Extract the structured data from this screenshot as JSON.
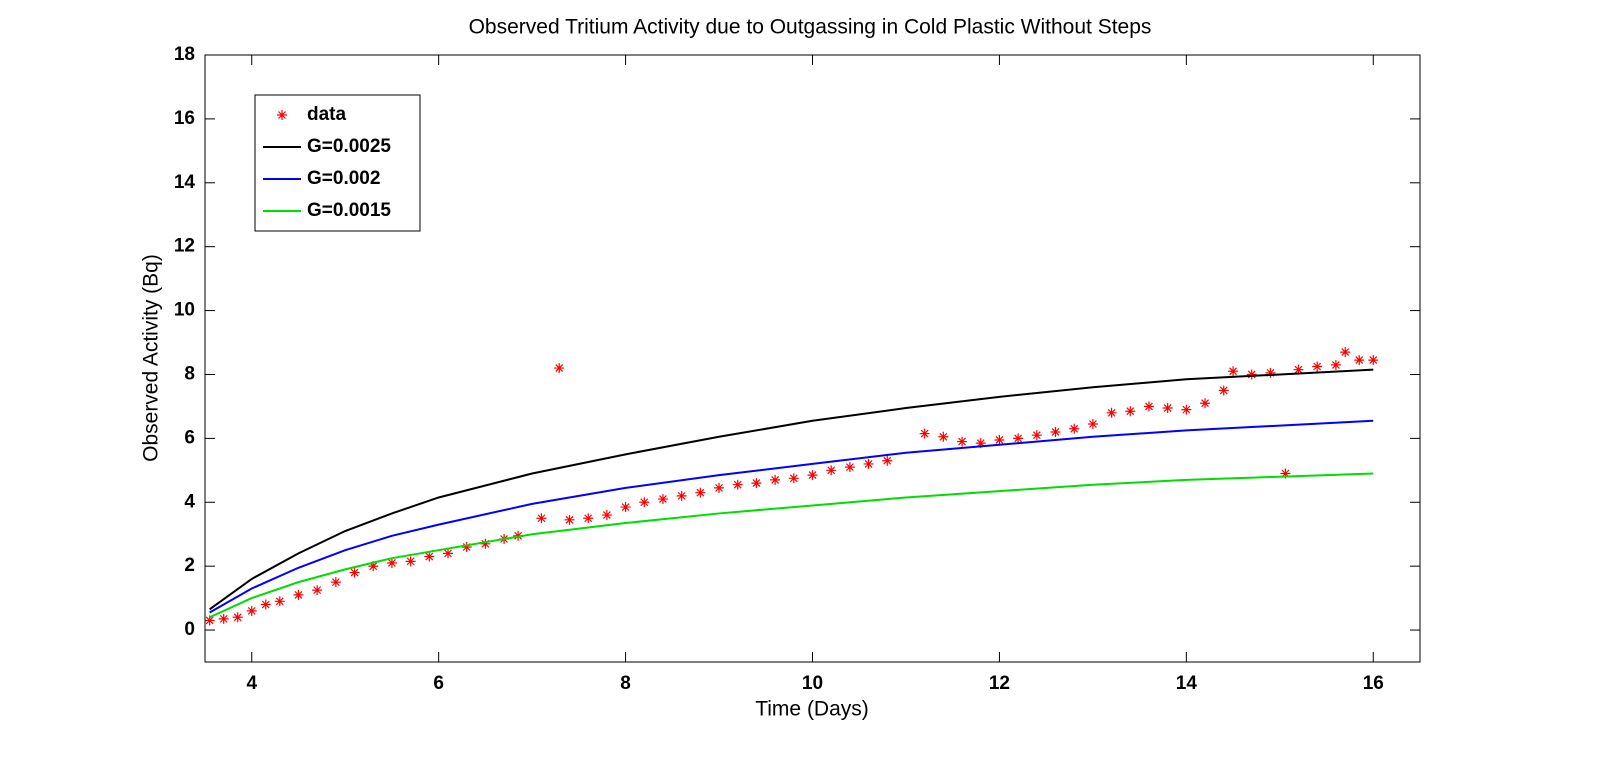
{
  "chart_data": {
    "type": "line",
    "title": "Observed Tritium Activity due to Outgassing in Cold Plastic Without Steps",
    "x_label": "Time (Days)",
    "y_label": "Observed Activity (Bq)",
    "xlim": [
      3.5,
      16.5
    ],
    "ylim": [
      -1,
      18
    ],
    "xticks": [
      4,
      6,
      8,
      10,
      12,
      14,
      16
    ],
    "yticks": [
      0,
      2,
      4,
      6,
      8,
      10,
      12,
      14,
      16,
      18
    ],
    "legend": "upper left",
    "series": [
      {
        "name": "data",
        "color": "#ff0000",
        "marker": "*",
        "x": [
          3.55,
          3.7,
          3.85,
          4.0,
          4.15,
          4.3,
          4.5,
          4.7,
          4.9,
          5.1,
          5.3,
          5.5,
          5.7,
          5.9,
          6.1,
          6.3,
          6.5,
          6.7,
          6.85,
          7.1,
          7.29,
          7.4,
          7.6,
          7.8,
          8.0,
          8.2,
          8.4,
          8.6,
          8.8,
          9.0,
          9.2,
          9.4,
          9.6,
          9.8,
          10.0,
          10.2,
          10.4,
          10.6,
          10.8,
          11.2,
          11.4,
          11.6,
          11.8,
          12.0,
          12.2,
          12.4,
          12.6,
          12.8,
          13.0,
          13.2,
          13.4,
          13.6,
          13.8,
          14.0,
          14.2,
          14.4,
          14.5,
          14.7,
          14.9,
          15.06,
          15.2,
          15.4,
          15.6,
          15.7,
          15.85,
          16.0
        ],
        "values": [
          0.3,
          0.35,
          0.4,
          0.6,
          0.8,
          0.9,
          1.1,
          1.25,
          1.5,
          1.8,
          2.0,
          2.1,
          2.15,
          2.3,
          2.4,
          2.6,
          2.7,
          2.85,
          2.95,
          3.5,
          8.2,
          3.45,
          3.5,
          3.6,
          3.85,
          4.0,
          4.1,
          4.2,
          4.3,
          4.45,
          4.55,
          4.6,
          4.7,
          4.75,
          4.85,
          5.0,
          5.1,
          5.2,
          5.3,
          6.15,
          6.05,
          5.9,
          5.85,
          5.95,
          6.0,
          6.1,
          6.2,
          6.3,
          6.45,
          6.8,
          6.85,
          7.0,
          6.95,
          6.9,
          7.1,
          7.5,
          8.1,
          8.0,
          8.05,
          4.9,
          8.15,
          8.25,
          8.3,
          8.7,
          8.45,
          8.45
        ]
      },
      {
        "name": "G=0.0025",
        "color": "#000000",
        "x": [
          3.55,
          4,
          4.5,
          5,
          5.5,
          6,
          7,
          8,
          9,
          10,
          11,
          12,
          13,
          14,
          15,
          16
        ],
        "values": [
          0.65,
          1.6,
          2.4,
          3.1,
          3.65,
          4.15,
          4.9,
          5.5,
          6.05,
          6.55,
          6.95,
          7.3,
          7.6,
          7.85,
          8.0,
          8.15
        ]
      },
      {
        "name": "G=0.002",
        "color": "#0000ff",
        "x": [
          3.55,
          4,
          4.5,
          5,
          5.5,
          6,
          7,
          8,
          9,
          10,
          11,
          12,
          13,
          14,
          15,
          16
        ],
        "values": [
          0.55,
          1.3,
          1.95,
          2.5,
          2.95,
          3.3,
          3.95,
          4.45,
          4.85,
          5.2,
          5.55,
          5.8,
          6.05,
          6.25,
          6.4,
          6.55
        ]
      },
      {
        "name": "G=0.0015",
        "color": "#00dd00",
        "x": [
          3.55,
          4,
          4.5,
          5,
          5.5,
          6,
          7,
          8,
          9,
          10,
          11,
          12,
          13,
          14,
          15,
          16
        ],
        "values": [
          0.4,
          1.0,
          1.5,
          1.9,
          2.25,
          2.5,
          3.0,
          3.35,
          3.65,
          3.9,
          4.15,
          4.35,
          4.55,
          4.7,
          4.8,
          4.9
        ]
      }
    ]
  }
}
